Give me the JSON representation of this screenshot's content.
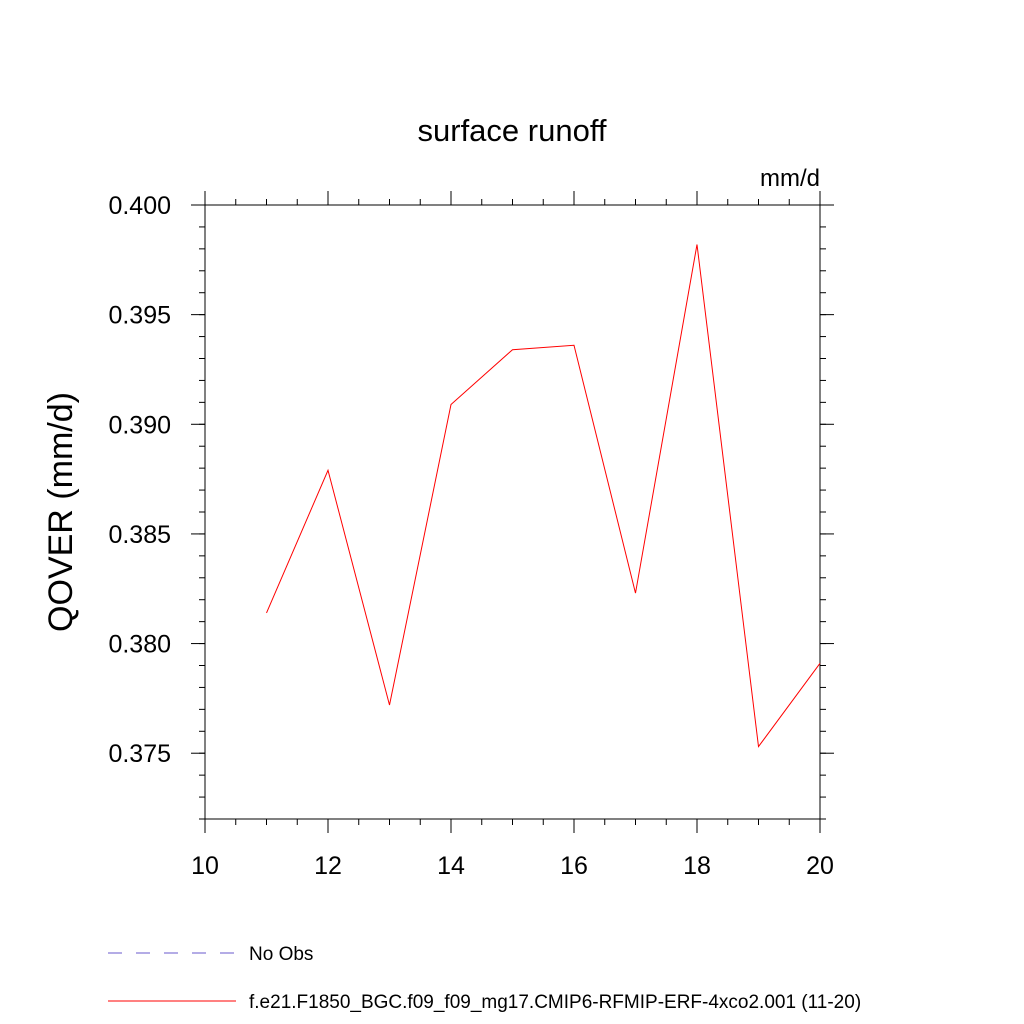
{
  "chart_data": {
    "type": "line",
    "title": "surface runoff",
    "units_label": "mm/d",
    "ylabel": "QOVER  (mm/d)",
    "xlim": [
      10,
      20
    ],
    "ylim": [
      0.372,
      0.4
    ],
    "x_ticks": [
      10,
      12,
      14,
      16,
      18,
      20
    ],
    "x_tick_labels": [
      "10",
      "12",
      "14",
      "16",
      "18",
      "20"
    ],
    "y_ticks": [
      0.375,
      0.38,
      0.385,
      0.39,
      0.395,
      0.4
    ],
    "y_tick_labels": [
      "0.375",
      "0.380",
      "0.385",
      "0.390",
      "0.395",
      "0.400"
    ],
    "grid": false,
    "legend_position": "bottom",
    "series": [
      {
        "name": "f.e21.F1850_BGC.f09_f09_mg17.CMIP6-RFMIP-ERF-4xco2.001 (11-20)",
        "color": "#ff0000",
        "style": "solid",
        "x": [
          11,
          12,
          13,
          14,
          15,
          16,
          17,
          18,
          19,
          20
        ],
        "values": [
          0.3814,
          0.3879,
          0.3772,
          0.3909,
          0.3934,
          0.3936,
          0.3823,
          0.3982,
          0.3753,
          0.3791
        ]
      }
    ],
    "legend": [
      {
        "label": "No Obs",
        "color": "#6a5acd",
        "style": "dashed"
      },
      {
        "label": "f.e21.F1850_BGC.f09_f09_mg17.CMIP6-RFMIP-ERF-4xco2.001 (11-20)",
        "color": "#ff0000",
        "style": "solid"
      }
    ]
  }
}
